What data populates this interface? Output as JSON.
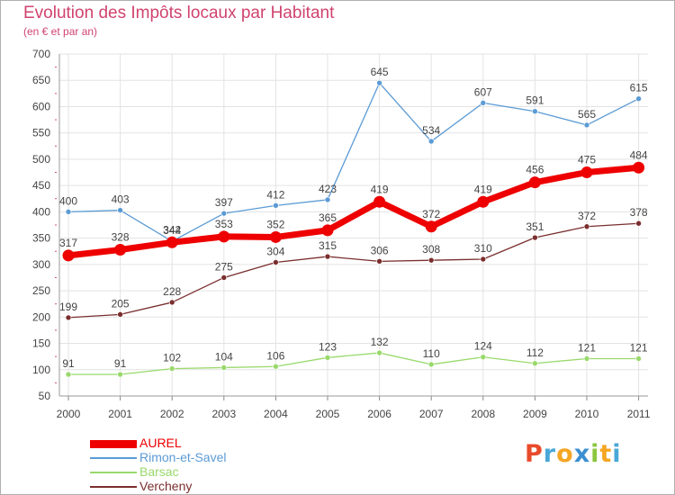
{
  "chart_data": {
    "type": "line",
    "title": "Evolution des Impôts locaux par Habitant",
    "subtitle": "(en € et par an)",
    "x": [
      "2000",
      "2001",
      "2002",
      "2003",
      "2004",
      "2005",
      "2006",
      "2007",
      "2008",
      "2009",
      "2010",
      "2011"
    ],
    "ylim": [
      50,
      700
    ],
    "yticks": [
      50,
      100,
      150,
      200,
      250,
      300,
      350,
      400,
      450,
      500,
      550,
      600,
      650,
      700
    ],
    "grid": true,
    "legend_position": "bottom-left",
    "series": [
      {
        "name": "AUREL",
        "color": "#ee0000",
        "values": [
          317,
          328,
          342,
          353,
          352,
          365,
          419,
          372,
          419,
          456,
          475,
          484
        ]
      },
      {
        "name": "Rimon-et-Savel",
        "color": "#5b9bd5",
        "values": [
          400,
          403,
          344,
          397,
          412,
          423,
          645,
          534,
          607,
          591,
          565,
          615
        ]
      },
      {
        "name": "Barsac",
        "color": "#99d96b",
        "values": [
          91,
          91,
          102,
          104,
          106,
          123,
          132,
          110,
          124,
          112,
          121,
          121
        ]
      },
      {
        "name": "Vercheny",
        "color": "#7a2e2e",
        "values": [
          199,
          205,
          228,
          275,
          304,
          315,
          306,
          308,
          310,
          351,
          372,
          378
        ]
      }
    ]
  },
  "logo": {
    "text": "Proxiti",
    "letters": [
      "P",
      "r",
      "o",
      "x",
      "i",
      "t",
      "i"
    ],
    "colors": [
      "#e84b2a",
      "#4aa8d8",
      "#f5a623",
      "#3a8fd1",
      "#8cc63f",
      "#f5a623",
      "#4aa8d8"
    ]
  }
}
